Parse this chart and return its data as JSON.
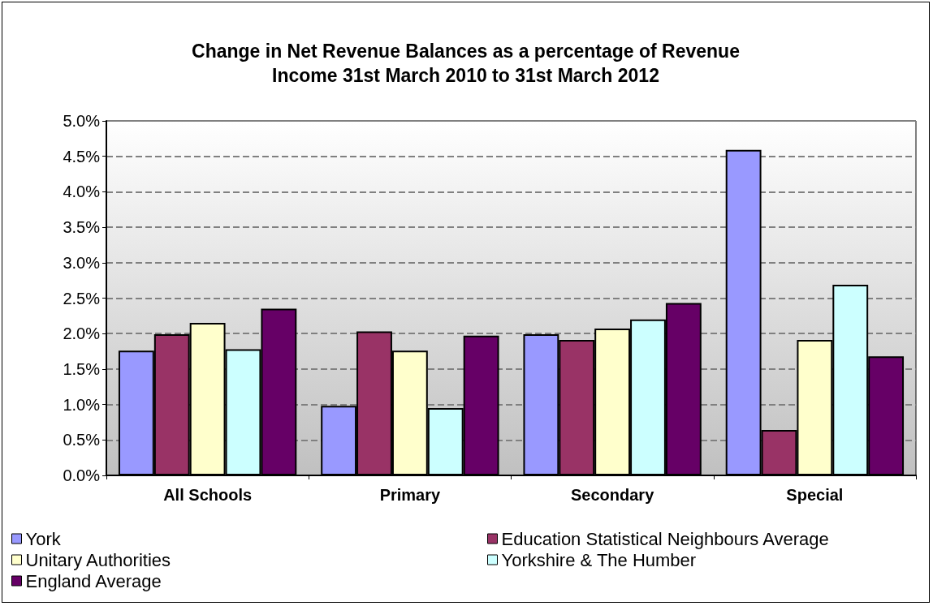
{
  "chart_data": {
    "type": "bar",
    "title": "Change in Net Revenue Balances as a percentage of Revenue\nIncome 31st March 2010 to 31st March 2012",
    "categories": [
      "All Schools",
      "Primary",
      "Secondary",
      "Special"
    ],
    "series": [
      {
        "name": "York",
        "color": "#9999ff",
        "values": [
          1.76,
          0.98,
          1.99,
          4.59
        ]
      },
      {
        "name": "Education Statistical Neighbours Average",
        "color": "#993366",
        "values": [
          1.99,
          2.03,
          1.91,
          0.64
        ]
      },
      {
        "name": "Unitary Authorities",
        "color": "#ffffcc",
        "values": [
          2.15,
          1.76,
          2.07,
          1.91
        ]
      },
      {
        "name": "Yorkshire & The Humber",
        "color": "#ccffff",
        "values": [
          1.78,
          0.95,
          2.2,
          2.69
        ]
      },
      {
        "name": "England Average",
        "color": "#660066",
        "values": [
          2.35,
          1.97,
          2.43,
          1.68
        ]
      }
    ],
    "ylim": [
      0,
      5
    ],
    "yticks": [
      {
        "value": 0,
        "label": "0.0%"
      },
      {
        "value": 0.5,
        "label": "0.5%"
      },
      {
        "value": 1,
        "label": "1.0%"
      },
      {
        "value": 1.5,
        "label": "1.5%"
      },
      {
        "value": 2,
        "label": "2.0%"
      },
      {
        "value": 2.5,
        "label": "2.5%"
      },
      {
        "value": 3,
        "label": "3.0%"
      },
      {
        "value": 3.5,
        "label": "3.5%"
      },
      {
        "value": 4,
        "label": "4.0%"
      },
      {
        "value": 4.5,
        "label": "4.5%"
      },
      {
        "value": 5,
        "label": "5.0%"
      }
    ],
    "grid": "y",
    "legend": "bottom"
  }
}
